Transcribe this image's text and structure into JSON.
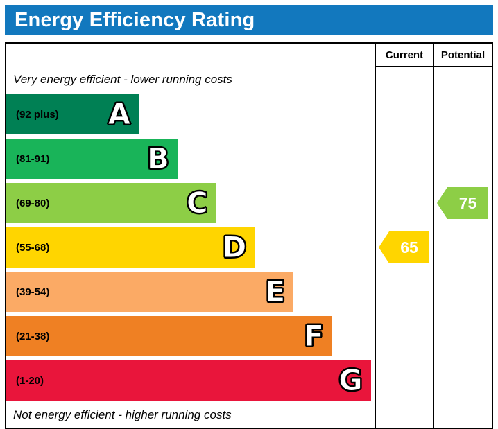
{
  "title_bar": {
    "title": "Energy Efficiency Rating",
    "background": "#1278be"
  },
  "table_headers": {
    "current": "Current",
    "potential": "Potential"
  },
  "chart_data": {
    "type": "bar",
    "title": "Energy Efficiency Rating",
    "top_caption": "Very energy efficient - lower running costs",
    "bottom_caption": "Not energy efficient - higher running costs",
    "bands": [
      {
        "letter": "A",
        "label": "(92 plus)",
        "color": "#008054",
        "width_pct": 36
      },
      {
        "letter": "B",
        "label": "(81-91)",
        "color": "#19b459",
        "width_pct": 46.5
      },
      {
        "letter": "C",
        "label": "(69-80)",
        "color": "#8dce46",
        "width_pct": 57
      },
      {
        "letter": "D",
        "label": "(55-68)",
        "color": "#ffd500",
        "width_pct": 67.5
      },
      {
        "letter": "E",
        "label": "(39-54)",
        "color": "#fbaa65",
        "width_pct": 78
      },
      {
        "letter": "F",
        "label": "(21-38)",
        "color": "#ef8023",
        "width_pct": 88.5
      },
      {
        "letter": "G",
        "label": "(1-20)",
        "color": "#e9153b",
        "width_pct": 99
      }
    ],
    "current": {
      "value": 65,
      "band": "D",
      "color": "#ffd500"
    },
    "potential": {
      "value": 75,
      "band": "C",
      "color": "#8dce46"
    }
  }
}
